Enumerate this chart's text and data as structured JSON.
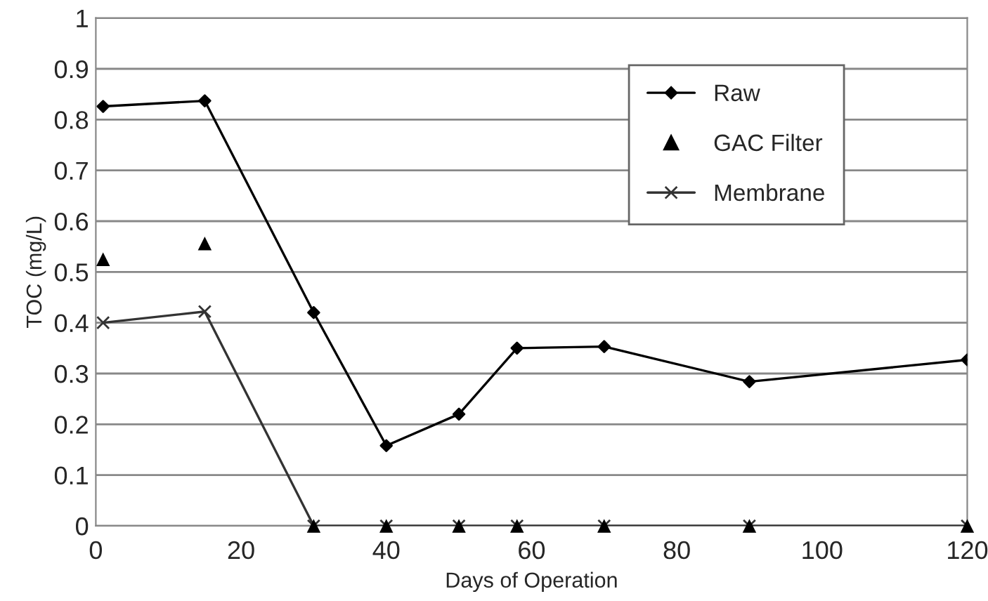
{
  "chart_data": {
    "type": "line",
    "xlabel": "Days of Operation",
    "ylabel": "TOC (mg/L)",
    "xlim": [
      0,
      120
    ],
    "xticks": [
      0,
      20,
      40,
      60,
      80,
      100,
      120
    ],
    "ylim": [
      0,
      1
    ],
    "yticks": [
      0,
      0.1,
      0.2,
      0.3,
      0.4,
      0.5,
      0.6,
      0.7,
      0.8,
      0.9,
      1
    ],
    "grid": "y",
    "legend": "top right",
    "series": [
      {
        "name": "Raw",
        "type": "line",
        "marker": "diamond",
        "color": "#000000",
        "x": [
          1,
          15,
          30,
          40,
          50,
          58,
          70,
          90,
          120
        ],
        "values": [
          0.826,
          0.837,
          0.42,
          0.158,
          0.22,
          0.35,
          0.353,
          0.284,
          0.327
        ]
      },
      {
        "name": "GAC Filter",
        "type": "scatter",
        "marker": "triangle",
        "color": "#000000",
        "x": [
          1,
          15,
          30,
          40,
          50,
          58,
          70,
          90,
          120
        ],
        "values": [
          0.525,
          0.556,
          0,
          0,
          0,
          0,
          0,
          0,
          0
        ]
      },
      {
        "name": "Membrane",
        "type": "line",
        "marker": "cross",
        "color": "#333333",
        "x": [
          1,
          15,
          30,
          40,
          50,
          58,
          70,
          90,
          120
        ],
        "values": [
          0.4,
          0.422,
          0,
          0,
          0,
          0,
          0,
          0,
          0
        ]
      }
    ]
  }
}
